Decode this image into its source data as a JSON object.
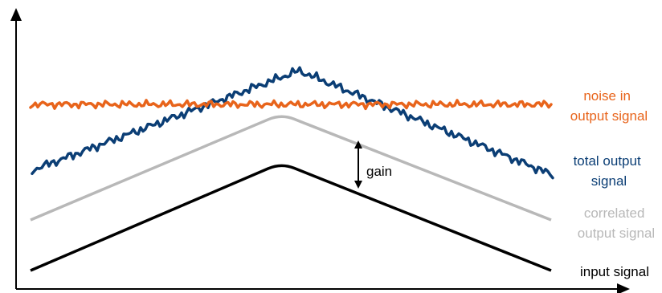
{
  "labels": {
    "noise": [
      "noise in",
      "output signal"
    ],
    "total": [
      "total output",
      "signal"
    ],
    "correlated": [
      "correlated",
      "output signal"
    ],
    "input": "input signal",
    "gain": "gain"
  },
  "colors": {
    "noise": "#E8641B",
    "total": "#0B3E75",
    "correlated": "#B8B8B8",
    "input": "#000000",
    "axis": "#000000"
  }
}
